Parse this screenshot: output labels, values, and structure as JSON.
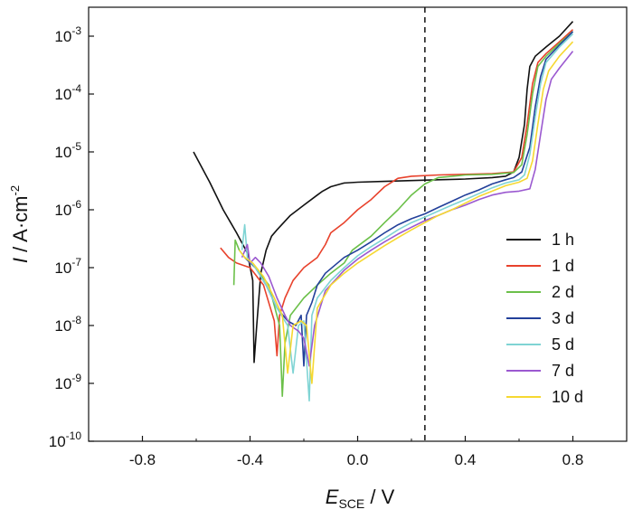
{
  "chart_data": {
    "type": "line",
    "title": "",
    "xlabel": {
      "main": "E",
      "sub": "SCE",
      "suffix": " / V"
    },
    "ylabel": {
      "main": "I",
      "suffix": " / A·cm",
      "sup": "-2"
    },
    "xlim": [
      -1.0,
      1.0
    ],
    "ylim_log10": [
      -10,
      -2.5
    ],
    "y_scale": "log",
    "x_ticks": [
      "-0.8",
      "-0.4",
      "0.0",
      "0.4",
      "0.8"
    ],
    "x_tick_values": [
      -0.8,
      -0.4,
      0.0,
      0.4,
      0.8
    ],
    "y_ticks": [
      {
        "base": "10",
        "exp": "-10",
        "value": -10
      },
      {
        "base": "10",
        "exp": "-9",
        "value": -9
      },
      {
        "base": "10",
        "exp": "-8",
        "value": -8
      },
      {
        "base": "10",
        "exp": "-7",
        "value": -7
      },
      {
        "base": "10",
        "exp": "-6",
        "value": -6
      },
      {
        "base": "10",
        "exp": "-5",
        "value": -5
      },
      {
        "base": "10",
        "exp": "-4",
        "value": -4
      },
      {
        "base": "10",
        "exp": "-3",
        "value": -3
      }
    ],
    "reference_line": {
      "x": 0.25,
      "style": "dashed"
    },
    "legend_position": "right",
    "series": [
      {
        "name": "1 h",
        "color": "#111111",
        "points": [
          [
            -0.61,
            1e-05
          ],
          [
            -0.55,
            3e-06
          ],
          [
            -0.5,
            1e-06
          ],
          [
            -0.45,
            4e-07
          ],
          [
            -0.41,
            1.8e-07
          ],
          [
            -0.39,
            6e-08
          ],
          [
            -0.385,
            2.3e-09
          ],
          [
            -0.375,
            1e-08
          ],
          [
            -0.36,
            8e-08
          ],
          [
            -0.34,
            2e-07
          ],
          [
            -0.32,
            3.5e-07
          ],
          [
            -0.3,
            4.5e-07
          ],
          [
            -0.25,
            8e-07
          ],
          [
            -0.2,
            1.2e-06
          ],
          [
            -0.15,
            1.8e-06
          ],
          [
            -0.13,
            2.1e-06
          ],
          [
            -0.1,
            2.5e-06
          ],
          [
            -0.05,
            2.9e-06
          ],
          [
            0.0,
            3e-06
          ],
          [
            0.1,
            3.1e-06
          ],
          [
            0.2,
            3.2e-06
          ],
          [
            0.3,
            3.3e-06
          ],
          [
            0.4,
            3.4e-06
          ],
          [
            0.5,
            3.6e-06
          ],
          [
            0.55,
            3.8e-06
          ],
          [
            0.58,
            4.5e-06
          ],
          [
            0.6,
            8e-06
          ],
          [
            0.62,
            3e-05
          ],
          [
            0.63,
            0.00012
          ],
          [
            0.64,
            0.0003
          ],
          [
            0.66,
            0.00045
          ],
          [
            0.7,
            0.00065
          ],
          [
            0.75,
            0.001
          ],
          [
            0.8,
            0.0018
          ]
        ]
      },
      {
        "name": "1 d",
        "color": "#e8422c",
        "points": [
          [
            -0.51,
            2.2e-07
          ],
          [
            -0.48,
            1.5e-07
          ],
          [
            -0.45,
            1.2e-07
          ],
          [
            -0.4,
            1e-07
          ],
          [
            -0.35,
            5e-08
          ],
          [
            -0.31,
            1.2e-08
          ],
          [
            -0.3,
            3e-09
          ],
          [
            -0.29,
            1.5e-08
          ],
          [
            -0.27,
            3e-08
          ],
          [
            -0.24,
            6e-08
          ],
          [
            -0.2,
            1e-07
          ],
          [
            -0.15,
            1.5e-07
          ],
          [
            -0.12,
            2.5e-07
          ],
          [
            -0.1,
            4e-07
          ],
          [
            -0.05,
            6e-07
          ],
          [
            0.0,
            1e-06
          ],
          [
            0.05,
            1.5e-06
          ],
          [
            0.1,
            2.5e-06
          ],
          [
            0.15,
            3.5e-06
          ],
          [
            0.2,
            3.8e-06
          ],
          [
            0.3,
            4e-06
          ],
          [
            0.4,
            4.1e-06
          ],
          [
            0.5,
            4.2e-06
          ],
          [
            0.58,
            4.5e-06
          ],
          [
            0.61,
            8e-06
          ],
          [
            0.63,
            3e-05
          ],
          [
            0.65,
            0.00015
          ],
          [
            0.67,
            0.00035
          ],
          [
            0.7,
            0.0005
          ],
          [
            0.75,
            0.0008
          ],
          [
            0.8,
            0.0013
          ]
        ]
      },
      {
        "name": "2 d",
        "color": "#6cc04a",
        "points": [
          [
            -0.46,
            5e-08
          ],
          [
            -0.455,
            3e-07
          ],
          [
            -0.44,
            2e-07
          ],
          [
            -0.42,
            1.5e-07
          ],
          [
            -0.38,
            1e-07
          ],
          [
            -0.33,
            5e-08
          ],
          [
            -0.29,
            1e-08
          ],
          [
            -0.28,
            6e-10
          ],
          [
            -0.27,
            5e-09
          ],
          [
            -0.25,
            1.5e-08
          ],
          [
            -0.2,
            3e-08
          ],
          [
            -0.15,
            5e-08
          ],
          [
            -0.1,
            8e-08
          ],
          [
            -0.05,
            1.2e-07
          ],
          [
            -0.02,
            2e-07
          ],
          [
            0.05,
            3.5e-07
          ],
          [
            0.1,
            6e-07
          ],
          [
            0.15,
            1e-06
          ],
          [
            0.2,
            1.8e-06
          ],
          [
            0.25,
            2.8e-06
          ],
          [
            0.3,
            3.6e-06
          ],
          [
            0.4,
            4e-06
          ],
          [
            0.5,
            4.1e-06
          ],
          [
            0.58,
            4.4e-06
          ],
          [
            0.61,
            6e-06
          ],
          [
            0.63,
            2e-05
          ],
          [
            0.65,
            0.0001
          ],
          [
            0.67,
            0.0003
          ],
          [
            0.7,
            0.00045
          ],
          [
            0.75,
            0.00075
          ],
          [
            0.8,
            0.0012
          ]
        ]
      },
      {
        "name": "3 d",
        "color": "#23409a",
        "points": [
          [
            -0.42,
            1.5e-07
          ],
          [
            -0.38,
            1e-07
          ],
          [
            -0.34,
            5e-08
          ],
          [
            -0.3,
            2e-08
          ],
          [
            -0.26,
            1.2e-08
          ],
          [
            -0.23,
            1e-08
          ],
          [
            -0.21,
            1.5e-08
          ],
          [
            -0.2,
            2e-09
          ],
          [
            -0.19,
            1.5e-08
          ],
          [
            -0.17,
            2.5e-08
          ],
          [
            -0.15,
            5e-08
          ],
          [
            -0.12,
            8e-08
          ],
          [
            -0.05,
            1.5e-07
          ],
          [
            0.0,
            2e-07
          ],
          [
            0.05,
            2.8e-07
          ],
          [
            0.1,
            4e-07
          ],
          [
            0.15,
            5.5e-07
          ],
          [
            0.2,
            7e-07
          ],
          [
            0.25,
            8.5e-07
          ],
          [
            0.3,
            1.1e-06
          ],
          [
            0.35,
            1.4e-06
          ],
          [
            0.4,
            1.8e-06
          ],
          [
            0.45,
            2.2e-06
          ],
          [
            0.5,
            2.8e-06
          ],
          [
            0.55,
            3.3e-06
          ],
          [
            0.58,
            3.6e-06
          ],
          [
            0.61,
            4.5e-06
          ],
          [
            0.64,
            1.2e-05
          ],
          [
            0.66,
            6e-05
          ],
          [
            0.68,
            0.0002
          ],
          [
            0.7,
            0.0004
          ],
          [
            0.75,
            0.0007
          ],
          [
            0.8,
            0.0012
          ]
        ]
      },
      {
        "name": "5 d",
        "color": "#7fd4d4",
        "points": [
          [
            -0.43,
            2e-07
          ],
          [
            -0.42,
            5.5e-07
          ],
          [
            -0.41,
            1.5e-07
          ],
          [
            -0.38,
            1e-07
          ],
          [
            -0.34,
            5e-08
          ],
          [
            -0.3,
            2e-08
          ],
          [
            -0.26,
            1e-08
          ],
          [
            -0.24,
            1.5e-09
          ],
          [
            -0.22,
            1e-08
          ],
          [
            -0.2,
            1.2e-08
          ],
          [
            -0.18,
            5e-10
          ],
          [
            -0.17,
            1.5e-08
          ],
          [
            -0.15,
            3e-08
          ],
          [
            -0.1,
            6e-08
          ],
          [
            -0.05,
            1e-07
          ],
          [
            0.0,
            1.6e-07
          ],
          [
            0.05,
            2.3e-07
          ],
          [
            0.1,
            3.2e-07
          ],
          [
            0.15,
            4.5e-07
          ],
          [
            0.2,
            6e-07
          ],
          [
            0.25,
            7.5e-07
          ],
          [
            0.3,
            9.5e-07
          ],
          [
            0.35,
            1.2e-06
          ],
          [
            0.4,
            1.5e-06
          ],
          [
            0.45,
            1.9e-06
          ],
          [
            0.5,
            2.4e-06
          ],
          [
            0.55,
            2.9e-06
          ],
          [
            0.6,
            3.3e-06
          ],
          [
            0.62,
            4e-06
          ],
          [
            0.64,
            9e-06
          ],
          [
            0.66,
            4e-05
          ],
          [
            0.68,
            0.00015
          ],
          [
            0.7,
            0.00035
          ],
          [
            0.75,
            0.00065
          ],
          [
            0.8,
            0.0011
          ]
        ]
      },
      {
        "name": "7 d",
        "color": "#9b59d0",
        "points": [
          [
            -0.43,
            1.5e-07
          ],
          [
            -0.41,
            2.5e-07
          ],
          [
            -0.4,
            1.2e-07
          ],
          [
            -0.38,
            1.5e-07
          ],
          [
            -0.36,
            1.2e-07
          ],
          [
            -0.33,
            7e-08
          ],
          [
            -0.3,
            3e-08
          ],
          [
            -0.27,
            1.5e-08
          ],
          [
            -0.25,
            1e-08
          ],
          [
            -0.22,
            8e-09
          ],
          [
            -0.2,
            6e-09
          ],
          [
            -0.18,
            2e-09
          ],
          [
            -0.16,
            1e-08
          ],
          [
            -0.12,
            4e-08
          ],
          [
            -0.05,
            9e-08
          ],
          [
            0.0,
            1.4e-07
          ],
          [
            0.05,
            2e-07
          ],
          [
            0.1,
            2.8e-07
          ],
          [
            0.15,
            3.8e-07
          ],
          [
            0.2,
            5e-07
          ],
          [
            0.25,
            6.5e-07
          ],
          [
            0.3,
            8e-07
          ],
          [
            0.35,
            1e-06
          ],
          [
            0.4,
            1.2e-06
          ],
          [
            0.45,
            1.5e-06
          ],
          [
            0.5,
            1.8e-06
          ],
          [
            0.55,
            2e-06
          ],
          [
            0.6,
            2.1e-06
          ],
          [
            0.64,
            2.3e-06
          ],
          [
            0.66,
            5e-06
          ],
          [
            0.68,
            2e-05
          ],
          [
            0.7,
            8e-05
          ],
          [
            0.72,
            0.00018
          ],
          [
            0.75,
            0.00028
          ],
          [
            0.8,
            0.00055
          ]
        ]
      },
      {
        "name": "10 d",
        "color": "#f6d831",
        "points": [
          [
            -0.44,
            2e-07
          ],
          [
            -0.42,
            1.5e-07
          ],
          [
            -0.39,
            1.2e-07
          ],
          [
            -0.35,
            7e-08
          ],
          [
            -0.31,
            3e-08
          ],
          [
            -0.28,
            1.5e-08
          ],
          [
            -0.26,
            1.5e-09
          ],
          [
            -0.24,
            1e-08
          ],
          [
            -0.21,
            1.2e-08
          ],
          [
            -0.19,
            1e-08
          ],
          [
            -0.17,
            1e-09
          ],
          [
            -0.15,
            2e-08
          ],
          [
            -0.1,
            5e-08
          ],
          [
            -0.05,
            8e-08
          ],
          [
            0.0,
            1.2e-07
          ],
          [
            0.05,
            1.7e-07
          ],
          [
            0.1,
            2.4e-07
          ],
          [
            0.15,
            3.3e-07
          ],
          [
            0.2,
            4.5e-07
          ],
          [
            0.25,
            6e-07
          ],
          [
            0.3,
            8e-07
          ],
          [
            0.35,
            1e-06
          ],
          [
            0.4,
            1.3e-06
          ],
          [
            0.45,
            1.7e-06
          ],
          [
            0.5,
            2.1e-06
          ],
          [
            0.55,
            2.6e-06
          ],
          [
            0.6,
            3e-06
          ],
          [
            0.63,
            3.5e-06
          ],
          [
            0.65,
            7e-06
          ],
          [
            0.67,
            3e-05
          ],
          [
            0.69,
            0.00012
          ],
          [
            0.71,
            0.00025
          ],
          [
            0.75,
            0.00045
          ],
          [
            0.8,
            0.0008
          ]
        ]
      }
    ]
  }
}
